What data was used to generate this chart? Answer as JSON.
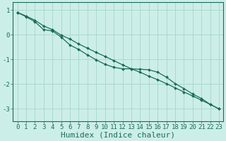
{
  "xlabel": "Humidex (Indice chaleur)",
  "bg_color": "#cceee8",
  "grid_color": "#aad8d0",
  "line_color": "#1a6b5a",
  "xlim": [
    -0.5,
    23.5
  ],
  "ylim": [
    -3.5,
    1.3
  ],
  "xticks": [
    0,
    1,
    2,
    3,
    4,
    5,
    6,
    7,
    8,
    9,
    10,
    11,
    12,
    13,
    14,
    15,
    16,
    17,
    18,
    19,
    20,
    21,
    22,
    23
  ],
  "yticks": [
    -3,
    -2,
    -1,
    0,
    1
  ],
  "line1_x": [
    0,
    1,
    2,
    3,
    4,
    5,
    6,
    7,
    8,
    9,
    10,
    11,
    12,
    13,
    14,
    15,
    16,
    17,
    18,
    19,
    20,
    21,
    22,
    23
  ],
  "line1_y": [
    0.9,
    0.72,
    0.52,
    0.2,
    0.15,
    -0.1,
    -0.42,
    -0.6,
    -0.82,
    -1.02,
    -1.2,
    -1.32,
    -1.38,
    -1.38,
    -1.4,
    -1.42,
    -1.52,
    -1.72,
    -1.98,
    -2.18,
    -2.4,
    -2.58,
    -2.82,
    -3.0
  ],
  "line2_x": [
    0,
    1,
    2,
    3,
    4,
    5,
    6,
    7,
    8,
    9,
    10,
    11,
    12,
    13,
    14,
    15,
    16,
    17,
    18,
    19,
    20,
    21,
    22,
    23
  ],
  "line2_y": [
    0.9,
    0.75,
    0.58,
    0.35,
    0.2,
    -0.02,
    -0.18,
    -0.38,
    -0.55,
    -0.72,
    -0.88,
    -1.05,
    -1.22,
    -1.38,
    -1.52,
    -1.68,
    -1.82,
    -1.98,
    -2.15,
    -2.32,
    -2.48,
    -2.65,
    -2.82,
    -3.0
  ],
  "font_family": "monospace",
  "tick_fontsize": 6.5,
  "label_fontsize": 8
}
